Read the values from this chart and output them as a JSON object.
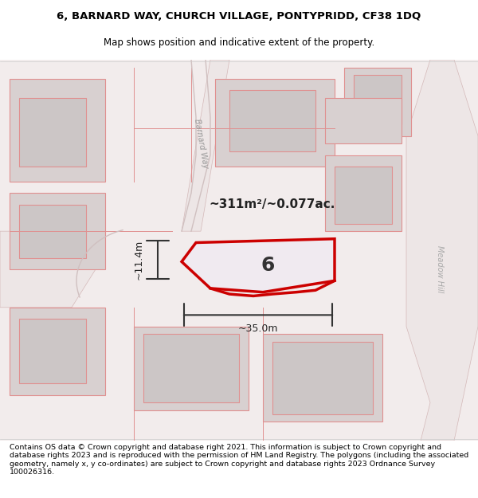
{
  "title_line1": "6, BARNARD WAY, CHURCH VILLAGE, PONTYPRIDD, CF38 1DQ",
  "title_line2": "Map shows position and indicative extent of the property.",
  "footer_text": "Contains OS data © Crown copyright and database right 2021. This information is subject to Crown copyright and database rights 2023 and is reproduced with the permission of HM Land Registry. The polygons (including the associated geometry, namely x, y co-ordinates) are subject to Crown copyright and database rights 2023 Ordnance Survey 100026316.",
  "area_label": "~311m²/~0.077ac.",
  "number_label": "6",
  "width_label": "~35.0m",
  "height_label": "~11.4m",
  "street_label1": "Barnard Way",
  "street_label2": "Meadow Hill",
  "bg_color": "#f5f0f0",
  "map_bg": "#f0eaea",
  "building_fill": "#d8d0d0",
  "road_color": "#e8d8d8",
  "plot_outline_color": "#cc0000",
  "plot_fill": "#e8e0e8",
  "dim_line_color": "#333333",
  "title_fontsize": 9.5,
  "subtitle_fontsize": 8.5,
  "footer_fontsize": 6.8
}
